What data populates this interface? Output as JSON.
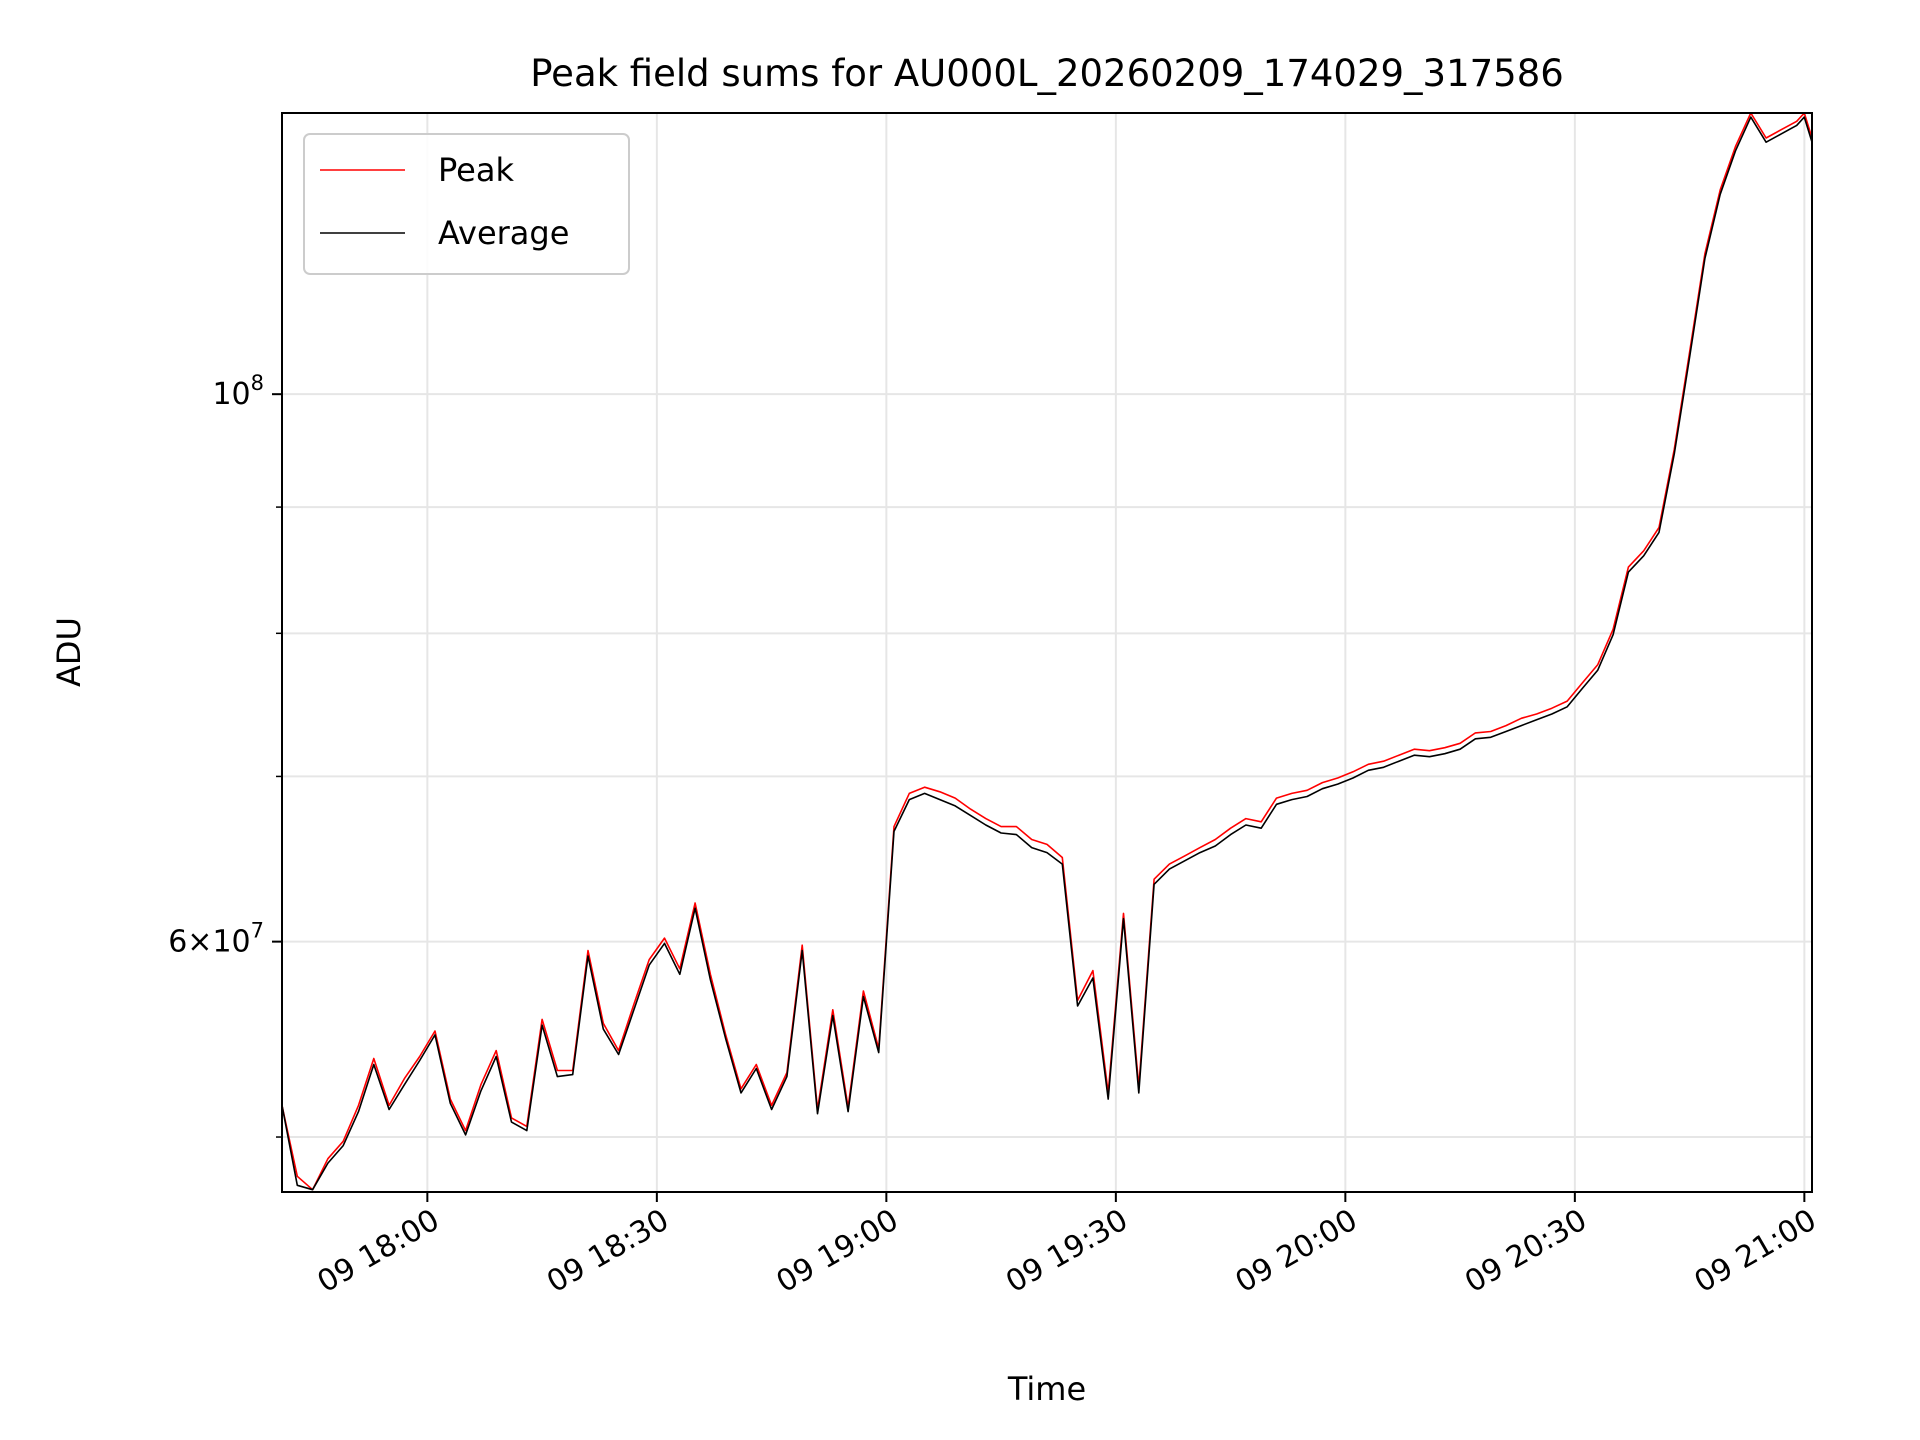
{
  "chart_data": {
    "type": "line",
    "title": "Peak field sums for AU000L_20260209_174029_317586",
    "xlabel": "Time",
    "ylabel": "ADU",
    "yscale": "log",
    "xlim": [
      "2026-02-09 17:41",
      "2026-02-09 21:01"
    ],
    "ylim": [
      47500000,
      130000000
    ],
    "grid": true,
    "legend_position": "top-left",
    "x_ticks": [
      "09 18:00",
      "09 18:30",
      "09 19:00",
      "09 19:30",
      "09 20:00",
      "09 20:30",
      "09 21:00"
    ],
    "y_ticks": [
      "10^8",
      "6×10^7"
    ],
    "x": [
      "17:41",
      "17:43",
      "17:45",
      "17:47",
      "17:49",
      "17:51",
      "17:53",
      "17:55",
      "17:57",
      "17:59",
      "18:01",
      "18:03",
      "18:05",
      "18:07",
      "18:09",
      "18:11",
      "18:13",
      "18:15",
      "18:17",
      "18:19",
      "18:21",
      "18:23",
      "18:25",
      "18:27",
      "18:29",
      "18:31",
      "18:33",
      "18:35",
      "18:37",
      "18:39",
      "18:41",
      "18:43",
      "18:45",
      "18:47",
      "18:49",
      "18:51",
      "18:53",
      "18:55",
      "18:57",
      "18:59",
      "19:01",
      "19:03",
      "19:05",
      "19:07",
      "19:09",
      "19:11",
      "19:13",
      "19:15",
      "19:17",
      "19:19",
      "19:21",
      "19:23",
      "19:25",
      "19:27",
      "19:29",
      "19:31",
      "19:33",
      "19:35",
      "19:37",
      "19:39",
      "19:41",
      "19:43",
      "19:45",
      "19:47",
      "19:49",
      "19:51",
      "19:53",
      "19:55",
      "19:57",
      "19:59",
      "20:01",
      "20:03",
      "20:05",
      "20:07",
      "20:09",
      "20:11",
      "20:13",
      "20:15",
      "20:17",
      "20:19",
      "20:21",
      "20:23",
      "20:25",
      "20:27",
      "20:29",
      "20:31",
      "20:33",
      "20:35",
      "20:37",
      "20:39",
      "20:41",
      "20:43",
      "20:45",
      "20:47",
      "20:49",
      "20:51",
      "20:53",
      "20:55",
      "20:57",
      "20:59",
      "21:00",
      "21:01"
    ],
    "series": [
      {
        "name": "Peak",
        "color": "#ff0000",
        "values": [
          51500000,
          48200000,
          47600000,
          49000000,
          49800000,
          51500000,
          53800000,
          51500000,
          52800000,
          53900000,
          55200000,
          51800000,
          50300000,
          52500000,
          54200000,
          50900000,
          50500000,
          55800000,
          53200000,
          53200000,
          59500000,
          55600000,
          54200000,
          56600000,
          59000000,
          60200000,
          58500000,
          62200000,
          58200000,
          55000000,
          52300000,
          53500000,
          51500000,
          53100000,
          59800000,
          51300000,
          56300000,
          51400000,
          57300000,
          54300000,
          66800000,
          68900000,
          69300000,
          69000000,
          68600000,
          67900000,
          67300000,
          66800000,
          66800000,
          66000000,
          65700000,
          64900000,
          56800000,
          58400000,
          52100000,
          61600000,
          52400000,
          63600000,
          64500000,
          65000000,
          65500000,
          66000000,
          66700000,
          67300000,
          67100000,
          68600000,
          68900000,
          69100000,
          69600000,
          69900000,
          70300000,
          70800000,
          71000000,
          71400000,
          71800000,
          71700000,
          71900000,
          72200000,
          72900000,
          73000000,
          73400000,
          73900000,
          74200000,
          74600000,
          75100000,
          76400000,
          77700000,
          80300000,
          85100000,
          86400000,
          88300000,
          95000000,
          104000000,
          114000000,
          121000000,
          126000000,
          130000000,
          127000000,
          128000000,
          129000000,
          130000000,
          127000000
        ]
      },
      {
        "name": "Average",
        "color": "#000000",
        "values": [
          51500000,
          47800000,
          47600000,
          48800000,
          49600000,
          51200000,
          53500000,
          51300000,
          52500000,
          53700000,
          55000000,
          51600000,
          50100000,
          52200000,
          53900000,
          50700000,
          50300000,
          55500000,
          52900000,
          53000000,
          59200000,
          55300000,
          54000000,
          56300000,
          58700000,
          59900000,
          58200000,
          61900000,
          57900000,
          54800000,
          52100000,
          53300000,
          51300000,
          52900000,
          59500000,
          51100000,
          56000000,
          51200000,
          57000000,
          54100000,
          66500000,
          68500000,
          68900000,
          68500000,
          68100000,
          67500000,
          66900000,
          66400000,
          66300000,
          65500000,
          65200000,
          64500000,
          56500000,
          58000000,
          51800000,
          61300000,
          52100000,
          63300000,
          64200000,
          64700000,
          65200000,
          65600000,
          66300000,
          66900000,
          66700000,
          68200000,
          68500000,
          68700000,
          69200000,
          69500000,
          69900000,
          70400000,
          70600000,
          71000000,
          71400000,
          71300000,
          71500000,
          71800000,
          72500000,
          72600000,
          73000000,
          73400000,
          73800000,
          74200000,
          74700000,
          76000000,
          77300000,
          79900000,
          84700000,
          86000000,
          87900000,
          94600000,
          103500000,
          113500000,
          120500000,
          125500000,
          129500000,
          126500000,
          127500000,
          128500000,
          129500000,
          126500000
        ]
      }
    ]
  }
}
